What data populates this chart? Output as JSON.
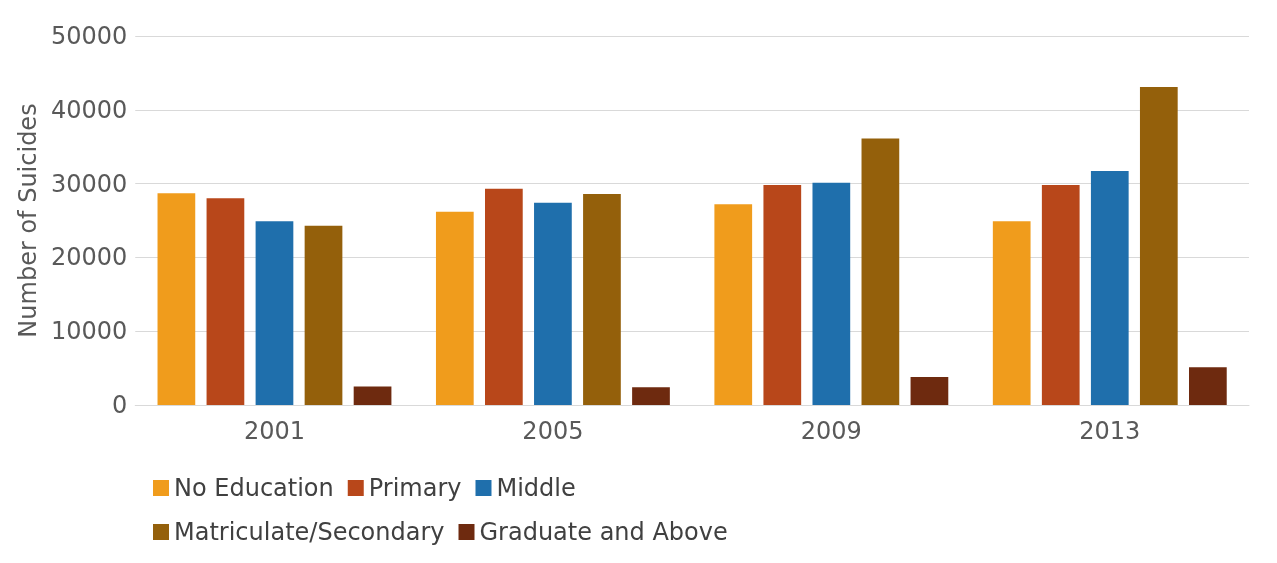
{
  "chart_data": {
    "type": "bar",
    "ylabel": "Number of Suicides",
    "categories": [
      "2001",
      "2005",
      "2009",
      "2013"
    ],
    "series": [
      {
        "name": "No Education",
        "color": "#f09c1c",
        "values": [
          28700,
          26200,
          27200,
          24900
        ]
      },
      {
        "name": "Primary",
        "color": "#b8471a",
        "values": [
          28000,
          29300,
          29800,
          29800
        ]
      },
      {
        "name": "Middle",
        "color": "#1f6fac",
        "values": [
          24900,
          27400,
          30100,
          31700
        ]
      },
      {
        "name": "Matriculate/Secondary",
        "color": "#94600b",
        "values": [
          24300,
          28600,
          36100,
          43100
        ]
      },
      {
        "name": "Graduate and Above",
        "color": "#6e2a0f",
        "values": [
          2500,
          2400,
          3800,
          5100
        ]
      }
    ],
    "ylim": [
      0,
      50000
    ],
    "yticks": [
      0,
      10000,
      20000,
      30000,
      40000,
      50000
    ],
    "grid": "y",
    "legend": "bottom"
  }
}
